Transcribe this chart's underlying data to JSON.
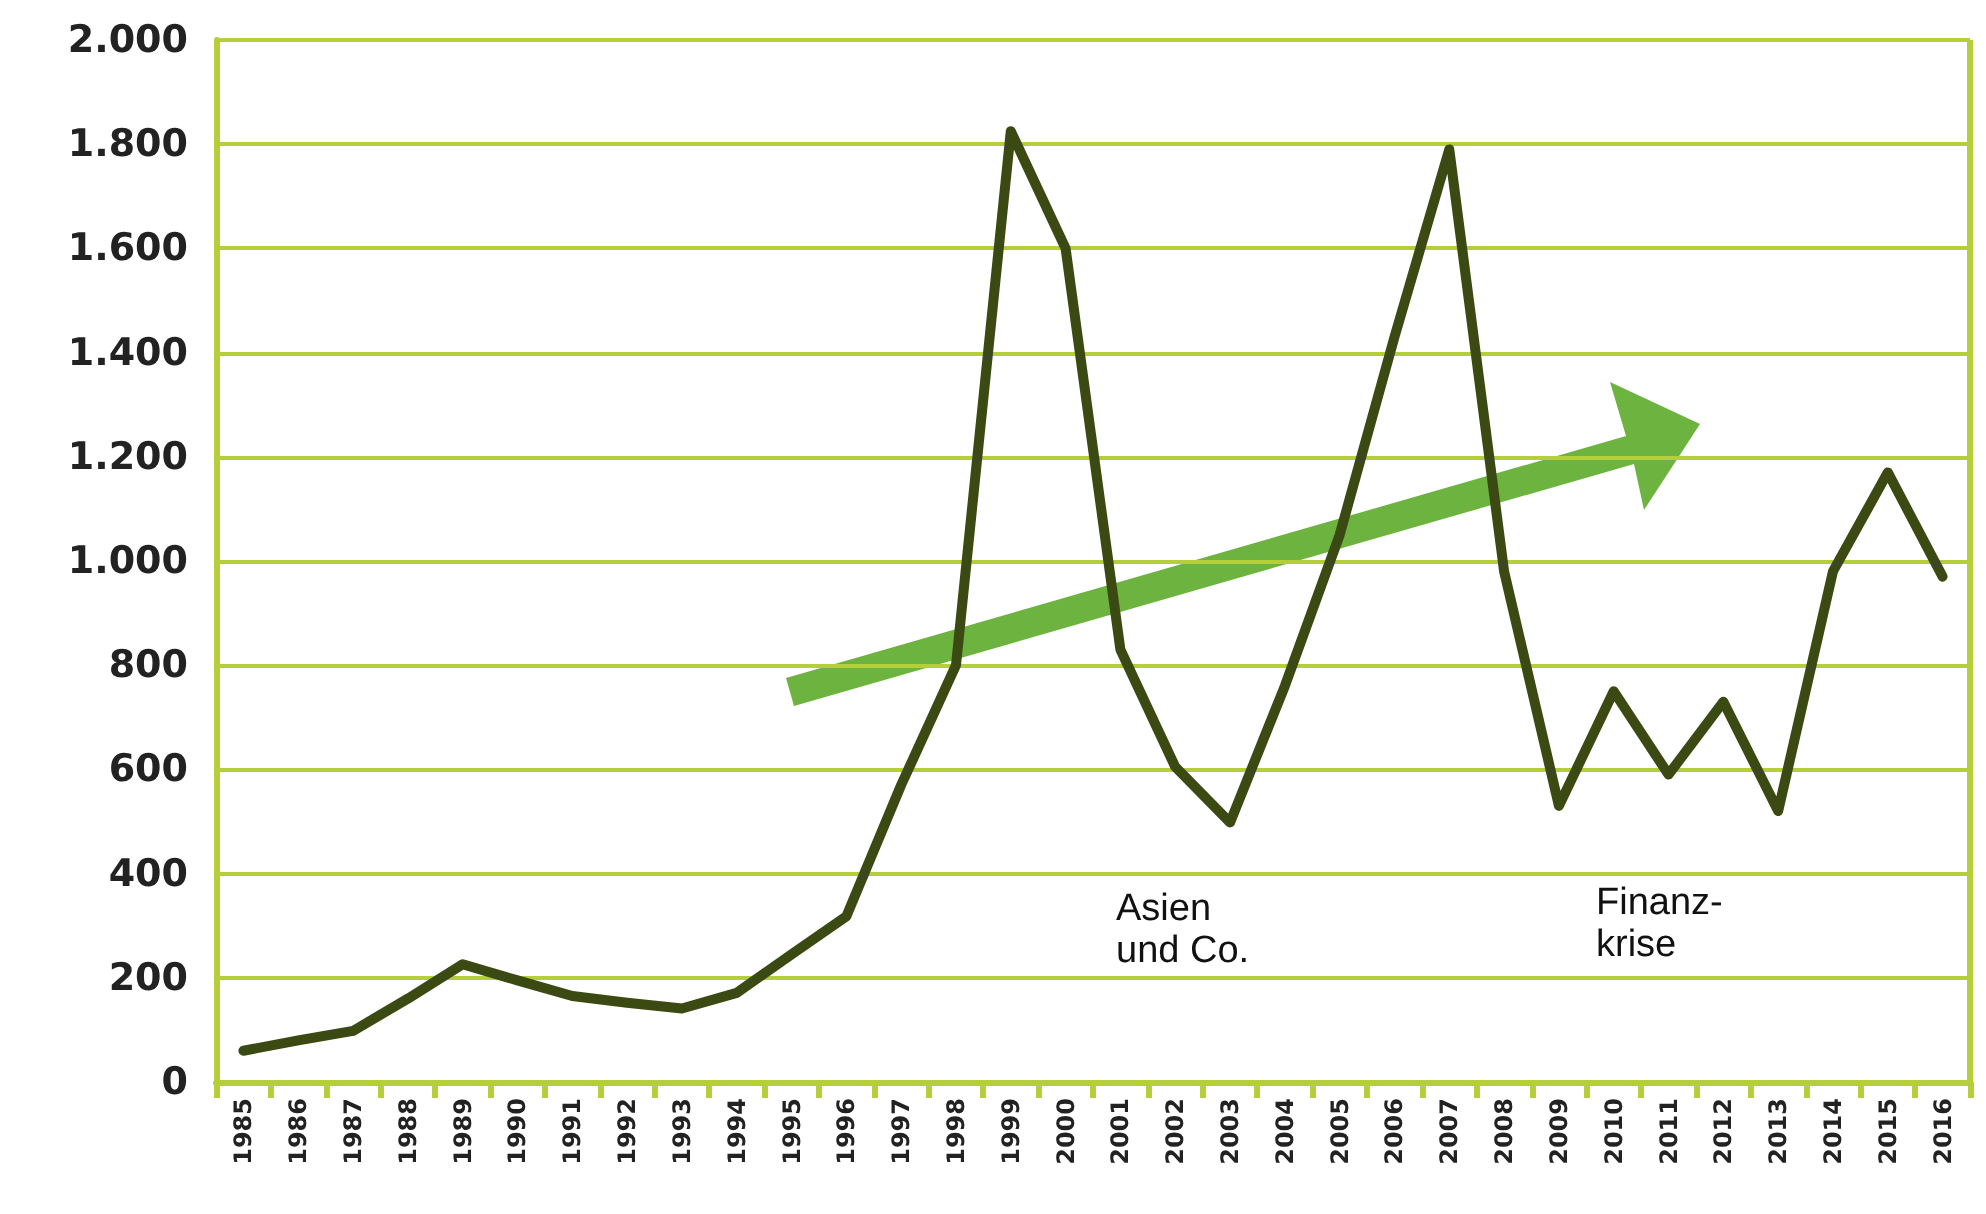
{
  "chart_data": {
    "type": "line",
    "categories": [
      "1985",
      "1986",
      "1987",
      "1988",
      "1989",
      "1990",
      "1991",
      "1992",
      "1993",
      "1994",
      "1995",
      "1996",
      "1997",
      "1998",
      "1999",
      "2000",
      "2001",
      "2002",
      "2003",
      "2004",
      "2005",
      "2006",
      "2007",
      "2008",
      "2009",
      "2010",
      "2011",
      "2012",
      "2013",
      "2014",
      "2015",
      "2016"
    ],
    "series": [
      {
        "color": "#3b4a12",
        "values": [
          60,
          80,
          98,
          160,
          226,
          195,
          165,
          152,
          141,
          171,
          245,
          318,
          570,
          800,
          1825,
          1600,
          830,
          605,
          498,
          760,
          1050,
          1430,
          1790,
          980,
          530,
          750,
          590,
          730,
          520,
          980,
          1170,
          970
        ]
      }
    ],
    "ylim": [
      0,
      2000
    ],
    "yticks": [
      {
        "value": 0,
        "label": "0"
      },
      {
        "value": 200,
        "label": "200"
      },
      {
        "value": 400,
        "label": "400"
      },
      {
        "value": 600,
        "label": "600"
      },
      {
        "value": 800,
        "label": "800"
      },
      {
        "value": 1000,
        "label": "1.000"
      },
      {
        "value": 1200,
        "label": "1.200"
      },
      {
        "value": 1400,
        "label": "1.400"
      },
      {
        "value": 1600,
        "label": "1.600"
      },
      {
        "value": 1800,
        "label": "1.800"
      },
      {
        "value": 2000,
        "label": "2.000"
      }
    ],
    "grid": "y",
    "marker": "none",
    "line_style": "solid",
    "annotations": [
      "Asien\nund Co.",
      "Finanz-\nkrise"
    ]
  }
}
